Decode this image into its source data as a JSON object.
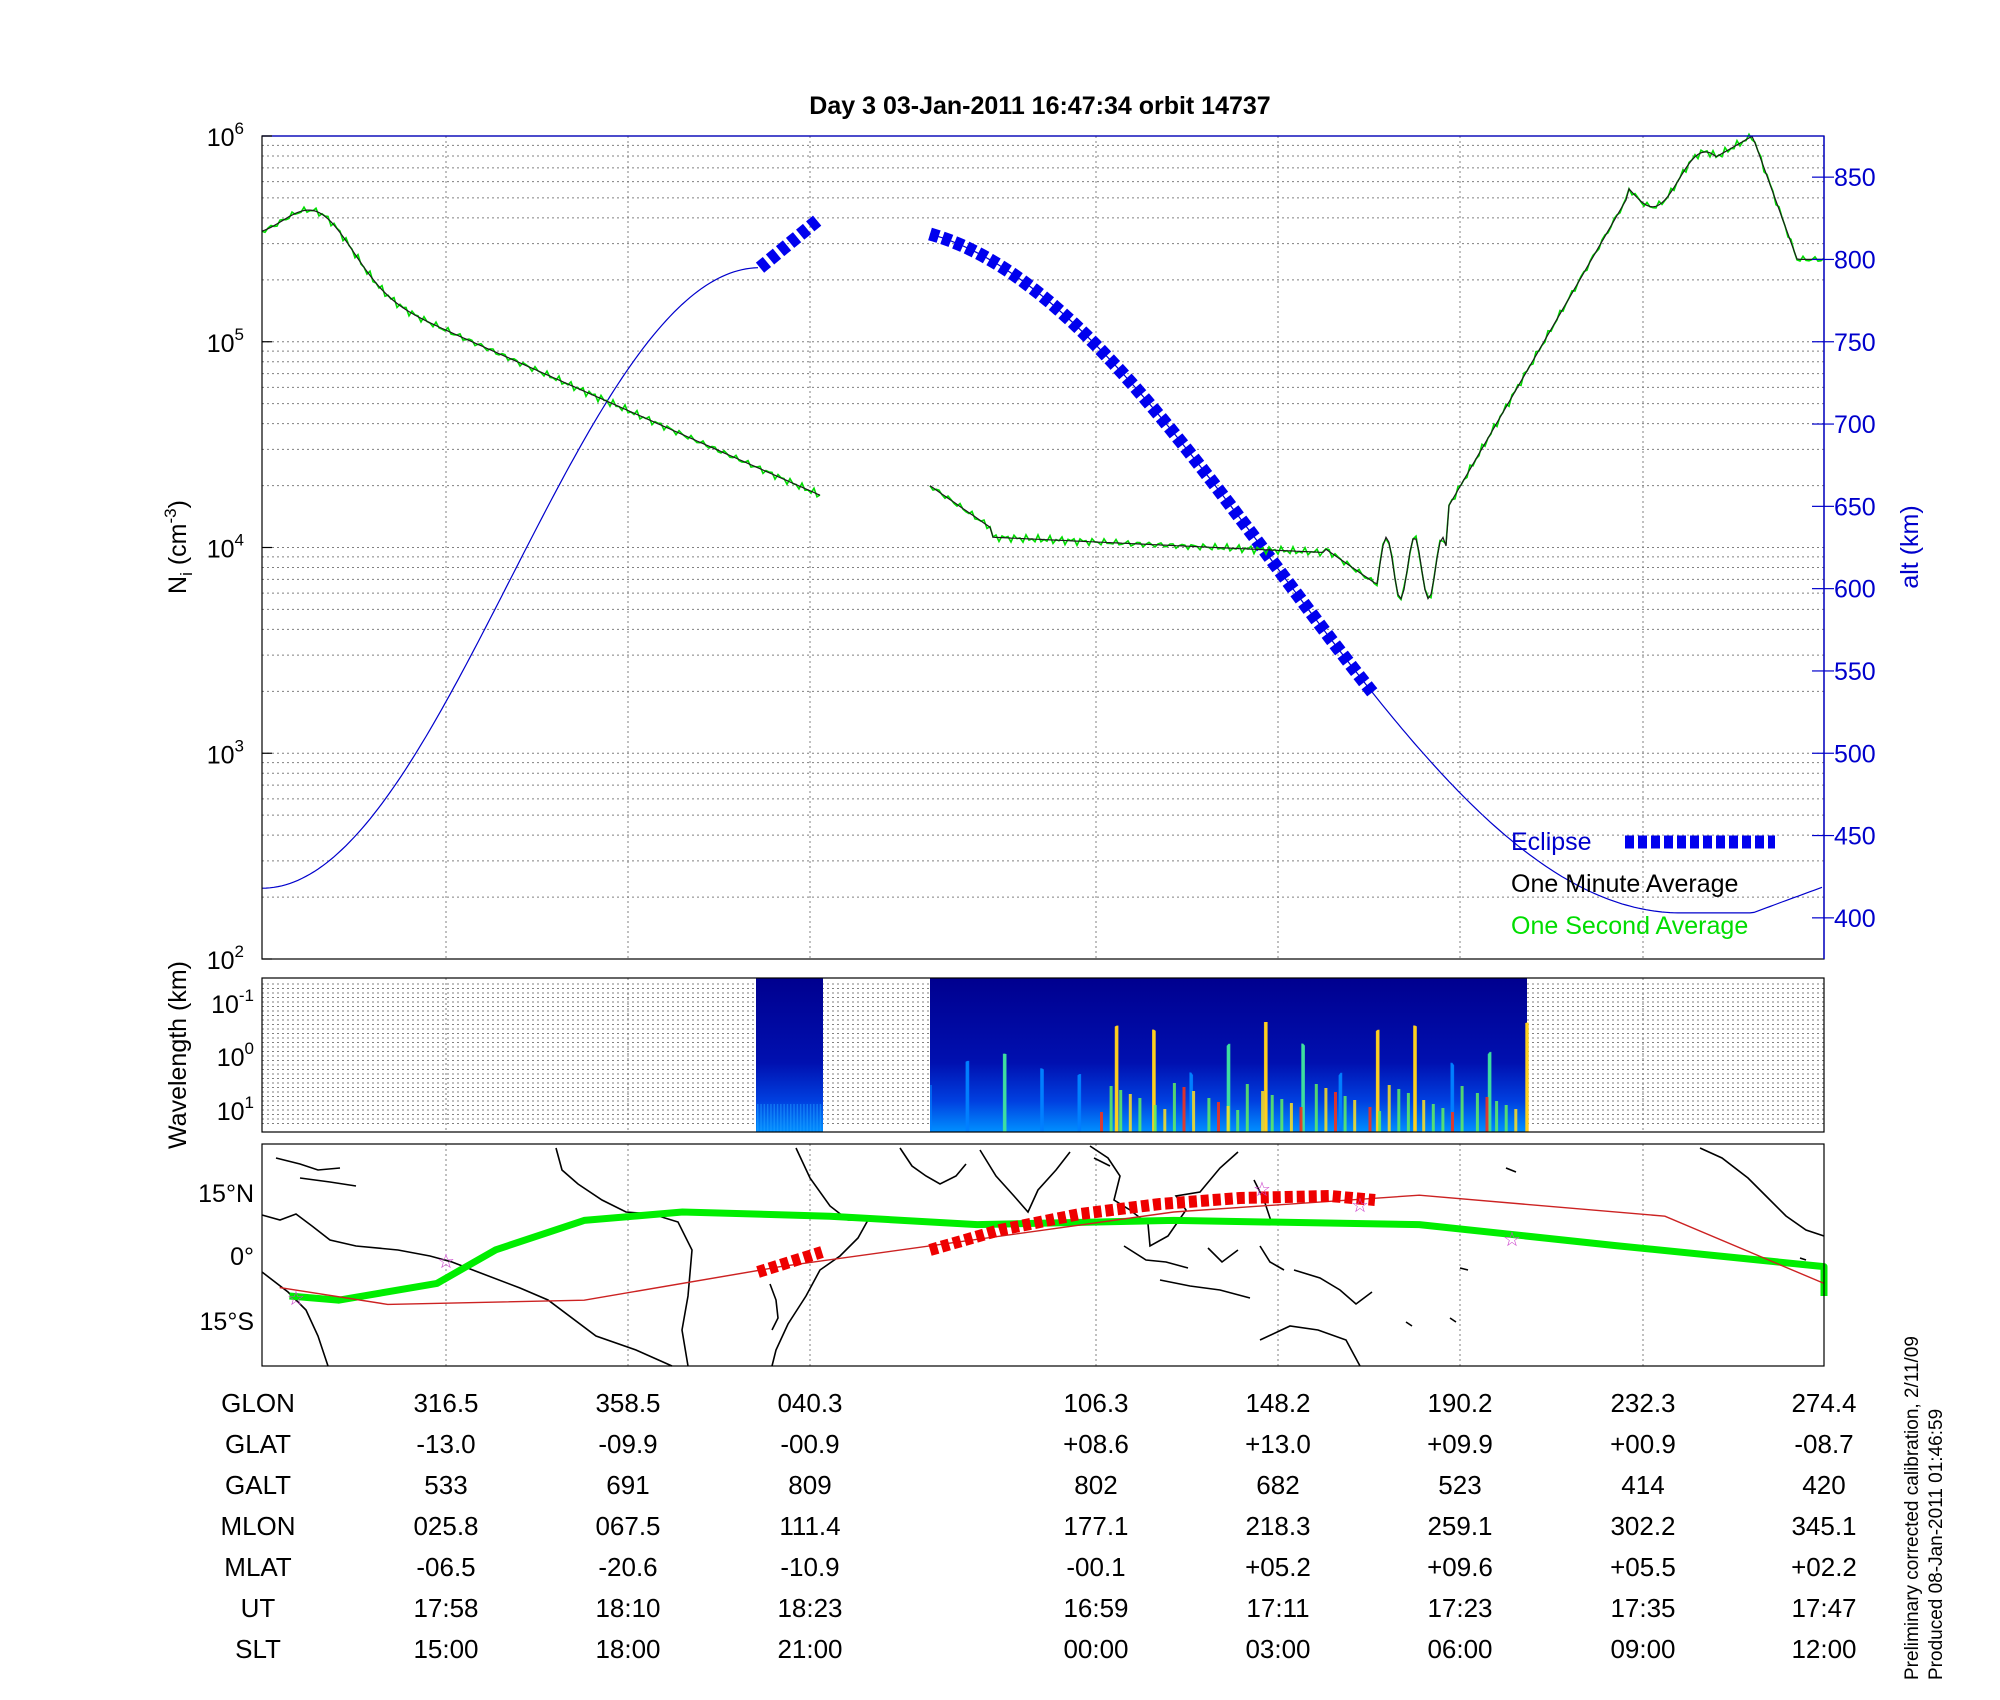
{
  "chart_data": [
    {
      "type": "line",
      "title": "Day 3  03-Jan-2011 16:47:34   orbit 14737",
      "ylabel": "N",
      "ylabel_sub": "i",
      "ylabel_unit": "(cm",
      "ylabel_unit_exp": "-3",
      "ylabel_unit_close": ")",
      "yscale": "log",
      "ylim": [
        100,
        1000000
      ],
      "ytick_labels": [
        {
          "base": "10",
          "exp": "2"
        },
        {
          "base": "10",
          "exp": "3"
        },
        {
          "base": "10",
          "exp": "4"
        },
        {
          "base": "10",
          "exp": "5"
        },
        {
          "base": "10",
          "exp": "6"
        }
      ],
      "y2label": "alt (km)",
      "y2lim": [
        375,
        875
      ],
      "y2ticks": [
        400,
        450,
        500,
        550,
        600,
        650,
        700,
        750,
        800,
        850
      ],
      "grid": true,
      "colors": {
        "density_minute": "#1a1a1a",
        "density_second": "#00dd00",
        "altitude": "#0000cc",
        "eclipse": "#0000ee"
      },
      "legend": {
        "placement": "bottom-right",
        "entries": [
          {
            "name": "Eclipse",
            "color": "#0000ee"
          },
          {
            "name": "One Minute Average",
            "color": "#000000"
          },
          {
            "name": "One Second Average",
            "color": "#00dd00"
          }
        ]
      },
      "series": [
        {
          "name": "One Minute Average",
          "ut_hours": [
            17.52,
            17.62,
            17.78,
            17.95,
            18.1,
            18.25,
            18.38,
            16.73,
            16.87,
            17.05,
            17.2,
            17.3,
            17.38,
            17.5,
            17.62,
            17.75,
            17.83,
            17.9
          ],
          "values": [
            300000,
            580000,
            250000,
            80000,
            58000,
            28000,
            21000,
            20000,
            11000,
            11000,
            10000,
            6000,
            10000,
            200000,
            900000,
            700000,
            1000000,
            280000
          ]
        },
        {
          "name": "altitude",
          "ut_hours": [
            17.52,
            17.7,
            17.9,
            18.1,
            18.3,
            16.73,
            16.9,
            17.1,
            17.3,
            17.5,
            17.62,
            17.75,
            17.83,
            17.9
          ],
          "values": [
            420,
            490,
            590,
            700,
            790,
            815,
            820,
            760,
            640,
            500,
            420,
            403,
            410,
            418
          ]
        }
      ],
      "eclipse_segments": [
        {
          "from": "18:20",
          "to": "18:24"
        },
        {
          "from": "16:47",
          "to": "17:14"
        }
      ]
    },
    {
      "type": "heatmap",
      "ylabel": "Wavelength (km)",
      "yscale": "log",
      "ytick_labels": [
        {
          "base": "10",
          "exp": "-1"
        },
        {
          "base": "10",
          "exp": "0"
        },
        {
          "base": "10",
          "exp": "1"
        }
      ],
      "colormap": "jet",
      "data_segments": [
        {
          "from": "18:20",
          "to": "18:24"
        },
        {
          "from": "16:47",
          "to": "17:30"
        }
      ]
    },
    {
      "type": "map",
      "ytick_labels": [
        "15°N",
        "0°",
        "15°S"
      ],
      "colors": {
        "ground_track": "#00ee00",
        "magnetic_equator": "#cc2222",
        "eclipse": "#ee0000",
        "markers": "#cc44cc"
      },
      "ground_track": [
        [
          280,
          -10
        ],
        [
          290,
          -11
        ],
        [
          310,
          -7
        ],
        [
          322,
          1
        ],
        [
          340,
          8
        ],
        [
          0,
          10
        ],
        [
          30,
          9
        ],
        [
          60,
          7
        ],
        [
          100,
          8
        ],
        [
          150,
          7
        ],
        [
          190,
          2
        ],
        [
          240,
          -3
        ],
        [
          274,
          -10
        ]
      ],
      "magnetic_equator": [
        [
          278,
          -8
        ],
        [
          300,
          -12
        ],
        [
          340,
          -11
        ],
        [
          20,
          -3
        ],
        [
          100,
          10
        ],
        [
          150,
          14
        ],
        [
          200,
          9
        ],
        [
          274,
          -7
        ]
      ]
    }
  ],
  "table": {
    "row_labels": [
      "GLON",
      "GLAT",
      "GALT",
      "MLON",
      "MLAT",
      "UT",
      "SLT"
    ],
    "columns": [
      [
        "316.5",
        "-13.0",
        "533",
        "025.8",
        "-06.5",
        "17:58",
        "15:00"
      ],
      [
        "358.5",
        "-09.9",
        "691",
        "067.5",
        "-20.6",
        "18:10",
        "18:00"
      ],
      [
        "040.3",
        "-00.9",
        "809",
        "111.4",
        "-10.9",
        "18:23",
        "21:00"
      ],
      [
        "106.3",
        "+08.6",
        "802",
        "177.1",
        "-00.1",
        "16:59",
        "00:00"
      ],
      [
        "148.2",
        "+13.0",
        "682",
        "218.3",
        "+05.2",
        "17:11",
        "03:00"
      ],
      [
        "190.2",
        "+09.9",
        "523",
        "259.1",
        "+09.6",
        "17:23",
        "06:00"
      ],
      [
        "232.3",
        "+00.9",
        "414",
        "302.2",
        "+05.5",
        "17:35",
        "09:00"
      ],
      [
        "274.4",
        "-08.7",
        "420",
        "345.1",
        "+02.2",
        "17:47",
        "12:00"
      ]
    ]
  },
  "footer": {
    "line1": "Preliminary corrected calibration, 2/11/09",
    "line2": "Produced 08-Jan-2011 01:46:59"
  }
}
